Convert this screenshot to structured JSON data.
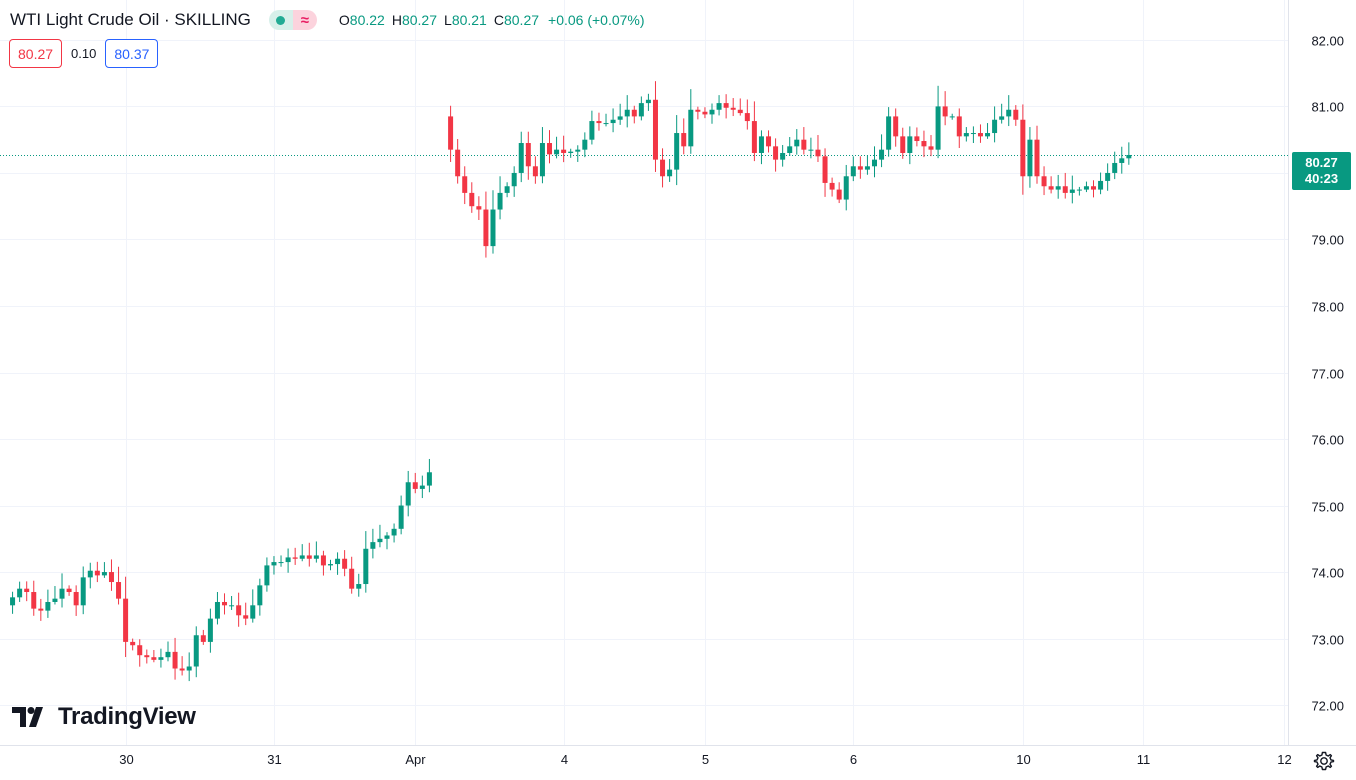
{
  "header": {
    "title": "WTI Light Crude Oil · SKILLING",
    "approx_symbol": "≈",
    "ohlc": {
      "o_label": "O",
      "o_value": "80.22",
      "h_label": "H",
      "h_value": "80.27",
      "l_label": "L",
      "l_value": "80.21",
      "c_label": "C",
      "c_value": "80.27",
      "change": "+0.06 (+0.07%)"
    }
  },
  "quotes": {
    "bid": "80.27",
    "spread": "0.10",
    "ask": "80.37"
  },
  "last_price": {
    "price": "80.27",
    "countdown": "40:23"
  },
  "logo": {
    "text": "TradingView"
  },
  "colors": {
    "up": "#089981",
    "down": "#f23645",
    "grid": "#f0f3fa",
    "text": "#131722"
  },
  "icons": {
    "settings": "gear-icon",
    "logo": "tradingview-logo-icon",
    "status": "market-open-dot-icon"
  },
  "chart_data": {
    "type": "candlestick",
    "symbol": "WTI Light Crude Oil",
    "source": "SKILLING",
    "y_ticks": [
      "82.00",
      "81.00",
      "80.00",
      "79.00",
      "78.00",
      "77.00",
      "76.00",
      "75.00",
      "74.00",
      "73.00",
      "72.00"
    ],
    "ylim": [
      71.4,
      82.6
    ],
    "x_ticks": [
      "30",
      "31",
      "Apr",
      "4",
      "5",
      "6",
      "10",
      "11",
      "12"
    ],
    "grid": true,
    "last_close": 80.27,
    "segments": [
      {
        "start_index": 0,
        "closes": [
          73.5,
          73.62,
          73.75,
          73.7,
          73.45,
          73.42,
          73.55,
          73.6,
          73.75,
          73.7,
          73.5,
          73.92,
          74.02,
          73.95,
          74.0,
          73.85,
          73.6,
          72.95,
          72.9,
          72.75,
          72.72,
          72.68,
          72.72,
          72.8,
          72.55,
          72.52,
          72.58,
          73.05,
          72.95,
          73.3,
          73.55,
          73.5,
          73.5,
          73.35,
          73.3,
          73.5,
          73.8,
          74.1,
          74.15,
          74.15,
          74.22,
          74.2,
          74.25,
          74.2,
          74.25,
          74.1,
          74.12,
          74.2,
          74.05,
          73.75,
          73.82,
          74.35,
          74.45,
          74.5,
          74.55,
          74.65,
          75.0,
          75.35,
          75.25,
          75.3,
          75.5
        ]
      },
      {
        "start_index": 62,
        "closes": [
          80.85,
          80.35,
          79.95,
          79.7,
          79.5,
          79.45,
          78.9,
          79.45,
          79.7,
          79.8,
          80.0,
          80.45,
          80.1,
          79.95,
          80.45,
          80.28,
          80.35,
          80.3,
          80.32,
          80.35,
          80.5,
          80.78,
          80.75,
          80.75,
          80.8,
          80.85,
          80.95,
          80.85,
          81.05,
          81.1,
          80.2,
          79.95,
          80.05,
          80.6,
          80.4,
          80.95,
          80.92,
          80.88,
          80.95,
          81.05,
          80.98,
          80.95,
          80.9,
          80.78,
          80.3,
          80.55,
          80.4,
          80.2,
          80.3,
          80.4,
          80.5,
          80.35,
          80.35,
          80.25,
          79.85,
          79.75,
          79.6,
          79.95,
          80.1,
          80.05,
          80.1,
          80.2,
          80.35,
          80.85,
          80.55,
          80.3,
          80.55,
          80.48,
          80.4,
          80.35,
          81.0,
          80.85,
          80.85,
          80.55,
          80.6,
          80.6,
          80.55,
          80.6,
          80.8,
          80.85,
          80.95,
          80.8,
          79.95,
          80.5,
          79.95,
          79.8,
          79.75,
          79.8,
          79.7,
          79.75,
          79.75,
          79.8,
          79.75,
          79.88,
          80.0,
          80.15,
          80.22,
          80.27
        ]
      }
    ]
  }
}
